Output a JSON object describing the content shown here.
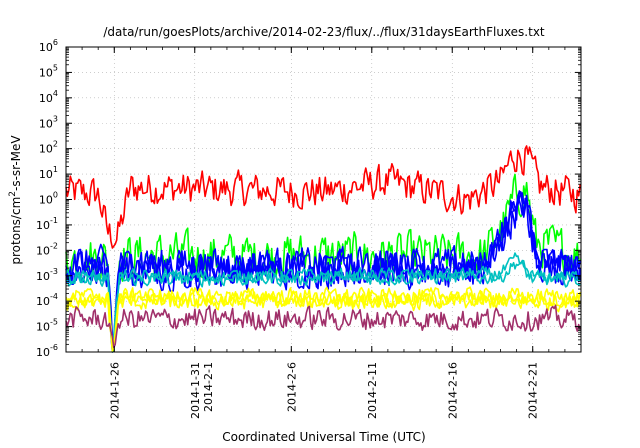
{
  "chart_data": {
    "type": "line",
    "title": "/data/run/goesPlots/archive/2014-02-23/flux/../flux/31daysEarthFluxes.txt",
    "xlabel": "Coordinated Universal Time (UTC)",
    "ylabel": {
      "pre": "protons/cm",
      "sup": "2",
      "post": "-s-sr-MeV"
    },
    "yscale": "log",
    "ylim": [
      1e-06,
      1000000.0
    ],
    "xlim": [
      "2014-01-23",
      "2014-02-24"
    ],
    "ytick_base": "10",
    "yticks": [
      {
        "exp": "-6",
        "value": 1e-06
      },
      {
        "exp": "-5",
        "value": 1e-05
      },
      {
        "exp": "-4",
        "value": 0.0001
      },
      {
        "exp": "-3",
        "value": 0.001
      },
      {
        "exp": "-2",
        "value": 0.01
      },
      {
        "exp": "-1",
        "value": 0.1
      },
      {
        "exp": "0",
        "value": 1
      },
      {
        "exp": "1",
        "value": 10
      },
      {
        "exp": "2",
        "value": 100
      },
      {
        "exp": "3",
        "value": 1000
      },
      {
        "exp": "4",
        "value": 10000
      },
      {
        "exp": "5",
        "value": 100000
      },
      {
        "exp": "6",
        "value": 1000000
      }
    ],
    "xticks": [
      {
        "date": "2014-01-26",
        "label": "2014-1-26"
      },
      {
        "date": "2014-01-31",
        "label": "2014-1-31",
        "label2": "2014-2-1"
      },
      {
        "date": "2014-02-06",
        "label": "2014-2-6"
      },
      {
        "date": "2014-02-11",
        "label": "2014-2-11"
      },
      {
        "date": "2014-02-16",
        "label": "2014-2-16"
      },
      {
        "date": "2014-02-21",
        "label": "2014-2-21"
      }
    ],
    "grid": true,
    "series": [
      {
        "color": "#ff0000",
        "base": 2.5,
        "noise": 0.75,
        "lines": 1,
        "keys": [
          [
            "2014-01-23",
            2
          ],
          [
            "2014-01-25",
            1.6
          ],
          [
            "2014-01-25.6",
            0.05
          ],
          [
            "2014-01-26.2",
            0.03
          ],
          [
            "2014-01-27",
            3
          ],
          [
            "2014-02-08",
            2
          ],
          [
            "2014-02-12",
            5
          ],
          [
            "2014-02-17",
            1
          ],
          [
            "2014-02-19",
            5
          ],
          [
            "2014-02-19.8",
            60
          ],
          [
            "2014-02-20.6",
            45
          ],
          [
            "2014-02-21.5",
            3
          ],
          [
            "2014-02-24",
            1.5
          ]
        ]
      },
      {
        "color": "#00ff00",
        "base": 0.006,
        "noise": 1.0,
        "lines": 1,
        "keys": [
          [
            "2014-01-23",
            0.005
          ],
          [
            "2014-01-25.6",
            0.005
          ],
          [
            "2014-01-25.9",
            1e-06
          ],
          [
            "2014-01-26.3",
            0.006
          ],
          [
            "2014-02-18",
            0.006
          ],
          [
            "2014-02-19",
            0.05
          ],
          [
            "2014-02-19.9",
            1.2
          ],
          [
            "2014-02-20.6",
            3
          ],
          [
            "2014-02-21.2",
            0.02
          ],
          [
            "2014-02-24",
            0.006
          ]
        ]
      },
      {
        "color": "#0000ff",
        "base": 0.002,
        "noise": 0.75,
        "lines": 3,
        "keys": [
          [
            "2014-01-23",
            0.002
          ],
          [
            "2014-01-25.6",
            0.002
          ],
          [
            "2014-01-25.9",
            1e-06
          ],
          [
            "2014-01-26.3",
            0.002
          ],
          [
            "2014-02-18",
            0.002
          ],
          [
            "2014-02-19",
            0.03
          ],
          [
            "2014-02-19.9",
            0.4
          ],
          [
            "2014-02-20.6",
            0.8
          ],
          [
            "2014-02-21.2",
            0.004
          ],
          [
            "2014-02-24",
            0.002
          ]
        ]
      },
      {
        "color": "#00c0c0",
        "base": 0.0008,
        "noise": 0.3,
        "lines": 2,
        "keys": [
          [
            "2014-01-23",
            0.0008
          ],
          [
            "2014-01-25.6",
            0.0008
          ],
          [
            "2014-01-25.9",
            1e-06
          ],
          [
            "2014-01-26.3",
            0.0008
          ],
          [
            "2014-02-19",
            0.001
          ],
          [
            "2014-02-20",
            0.004
          ],
          [
            "2014-02-21",
            0.0008
          ],
          [
            "2014-02-24",
            0.0008
          ]
        ]
      },
      {
        "color": "#ffff00",
        "base": 0.00012,
        "noise": 0.35,
        "lines": 3,
        "keys": [
          [
            "2014-01-23",
            0.00012
          ],
          [
            "2014-01-25.6",
            0.00012
          ],
          [
            "2014-01-25.9",
            1e-06
          ],
          [
            "2014-01-26.3",
            0.00012
          ],
          [
            "2014-02-24",
            0.00012
          ]
        ]
      },
      {
        "color": "#a0306a",
        "base": 2e-05,
        "noise": 0.5,
        "lines": 1,
        "keys": [
          [
            "2014-01-23",
            2e-05
          ],
          [
            "2014-01-25.6",
            2e-05
          ],
          [
            "2014-01-25.9",
            1e-06
          ],
          [
            "2014-01-26.3",
            2e-05
          ],
          [
            "2014-02-24",
            2e-05
          ]
        ]
      }
    ]
  }
}
